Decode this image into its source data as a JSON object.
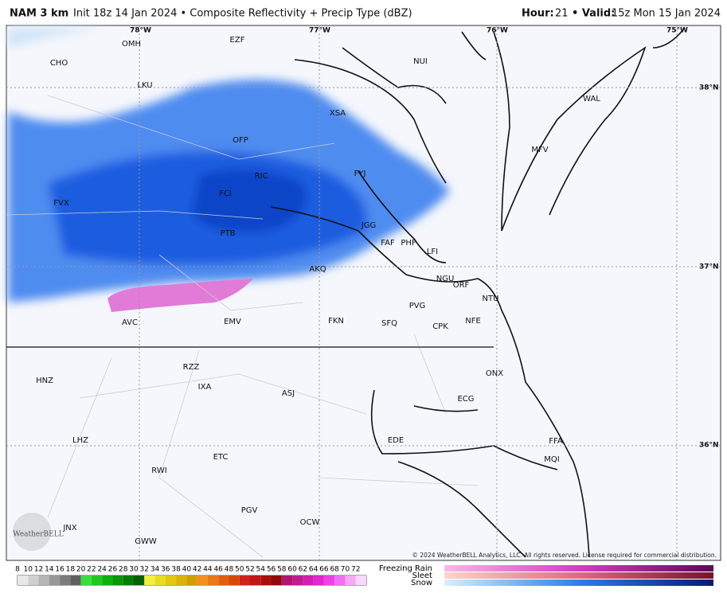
{
  "header": {
    "model": "NAM 3 km",
    "description": "Init 18z 14 Jan 2024 • Composite Reflectivity + Precip Type (dBZ)",
    "hour_label": "Hour:",
    "hour": "21",
    "valid_label": "• Valid:",
    "valid": "15z Mon 15 Jan 2024"
  },
  "longitudes": [
    "78°W",
    "77°W",
    "76°W",
    "75°W"
  ],
  "latitudes": [
    "38°N",
    "37°N",
    "36°N"
  ],
  "stations": [
    "OMH",
    "EZF",
    "CHO",
    "NUI",
    "LKU",
    "XSA",
    "WAL",
    "OFP",
    "MFV",
    "RIC",
    "FYJ",
    "FCI",
    "FVX",
    "JGG",
    "PTB",
    "FAF",
    "PHF",
    "LFI",
    "AKQ",
    "NGU",
    "ORF",
    "NTU",
    "PVG",
    "AVC",
    "EMV",
    "FKN",
    "SFQ",
    "CPK",
    "NFE",
    "RZZ",
    "ONX",
    "HNZ",
    "IXA",
    "ASJ",
    "ECG",
    "LHZ",
    "EDE",
    "FFA",
    "ETC",
    "MQI",
    "RWI",
    "PGV",
    "OCW",
    "JNX",
    "GWW"
  ],
  "logo": "WeatherBELL",
  "copyright": "© 2024 WeatherBELL Analytics, LLC. All rights reserved. License required for commercial distribution.",
  "legend": {
    "scale": [
      8,
      10,
      12,
      14,
      16,
      18,
      20,
      22,
      24,
      26,
      28,
      30,
      32,
      34,
      36,
      38,
      40,
      42,
      44,
      46,
      48,
      50,
      52,
      54,
      56,
      58,
      60,
      62,
      64,
      66,
      68,
      70,
      72
    ],
    "types": [
      "Freezing Rain",
      "Sleet",
      "Snow"
    ]
  }
}
